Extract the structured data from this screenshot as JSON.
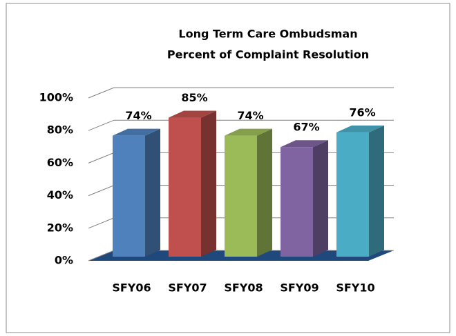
{
  "chart_data": {
    "type": "bar3d",
    "title": [
      "Long Term Care Ombudsman",
      "Percent of Complaint Resolution"
    ],
    "categories": [
      "SFY06",
      "SFY07",
      "SFY08",
      "SFY09",
      "SFY10"
    ],
    "values": [
      74,
      85,
      74,
      67,
      76
    ],
    "value_labels": [
      "74%",
      "85%",
      "74%",
      "67%",
      "76%"
    ],
    "colors": [
      "#4f81bd",
      "#c0504d",
      "#9bbb59",
      "#8064a2",
      "#4bacc6"
    ],
    "ylim": [
      0,
      100
    ],
    "yticks": [
      {
        "value": 0,
        "label": "0%"
      },
      {
        "value": 20,
        "label": "20%"
      },
      {
        "value": 40,
        "label": "40%"
      },
      {
        "value": 60,
        "label": "60%"
      },
      {
        "value": 80,
        "label": "80%"
      },
      {
        "value": 100,
        "label": "100%"
      }
    ],
    "grid": true
  }
}
